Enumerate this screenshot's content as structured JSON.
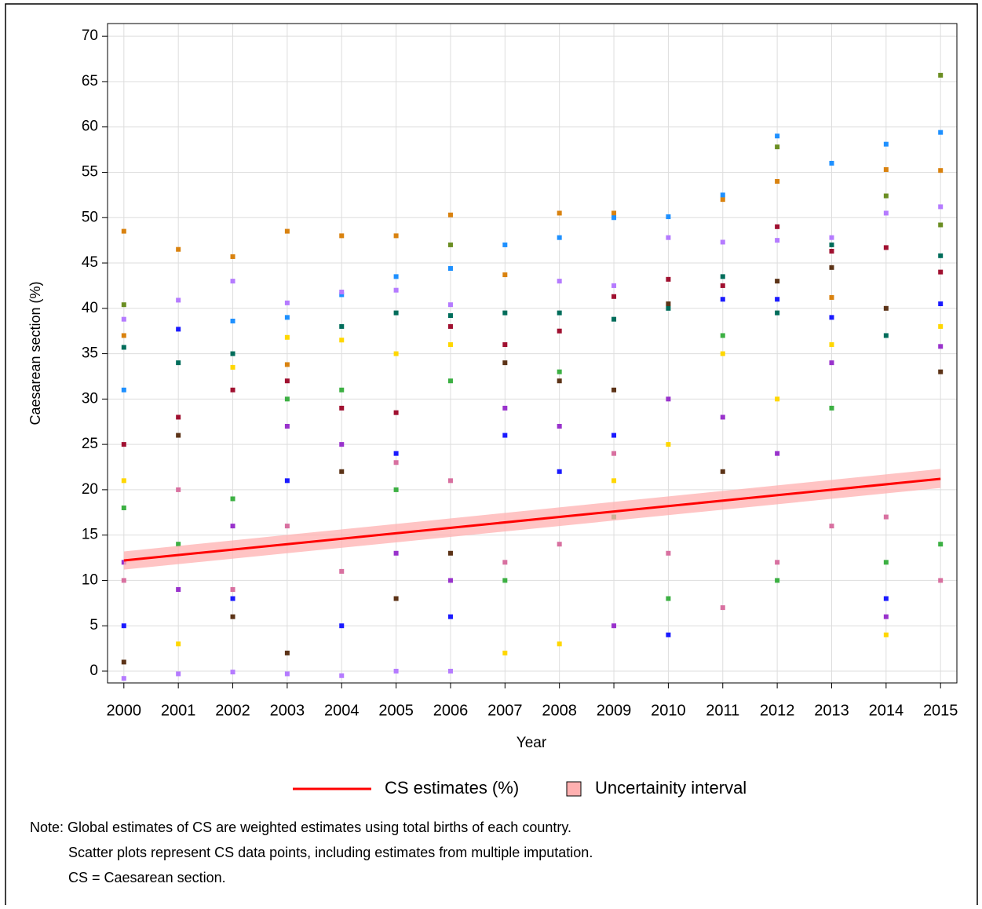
{
  "chart_data": {
    "type": "scatter",
    "x_label": "Year",
    "y_label": "Caesarean section (%)",
    "xlim": [
      1999.7,
      2015.3
    ],
    "ylim": [
      -1.3,
      71.4
    ],
    "xticks": [
      2000,
      2001,
      2002,
      2003,
      2004,
      2005,
      2006,
      2007,
      2008,
      2009,
      2010,
      2011,
      2012,
      2013,
      2014,
      2015
    ],
    "yticks": [
      0,
      5,
      10,
      15,
      20,
      25,
      30,
      35,
      40,
      45,
      50,
      55,
      60,
      65,
      70
    ],
    "grid": true,
    "points": [
      {
        "color": "#d9820f",
        "x": [
          2000,
          2001,
          2002,
          2003,
          2004,
          2005,
          2006,
          2007,
          2008,
          2009,
          2011,
          2012,
          2013,
          2014,
          2015,
          2000,
          2003
        ],
        "values": [
          48.5,
          46.5,
          45.7,
          48.5,
          48,
          48,
          50.3,
          43.7,
          50.5,
          50.5,
          52,
          54,
          41.2,
          55.3,
          55.2,
          37,
          33.8
        ]
      },
      {
        "color": "#1e90ff",
        "x": [
          2000,
          2002,
          2003,
          2004,
          2005,
          2006,
          2007,
          2008,
          2009,
          2010,
          2011,
          2012,
          2013,
          2014,
          2015
        ],
        "values": [
          31,
          38.6,
          39,
          41.5,
          43.5,
          44.4,
          47,
          47.8,
          50,
          50.1,
          52.5,
          59,
          56,
          58.1,
          59.4
        ]
      },
      {
        "color": "#b57bff",
        "x": [
          2000,
          2001,
          2002,
          2003,
          2004,
          2005,
          2006,
          2008,
          2009,
          2010,
          2011,
          2012,
          2013,
          2014,
          2015,
          2000,
          2001,
          2002,
          2003,
          2004,
          2005,
          2006
        ],
        "values": [
          38.8,
          40.9,
          43,
          40.6,
          41.8,
          42,
          40.4,
          43,
          42.5,
          47.8,
          47.3,
          47.5,
          47.8,
          50.5,
          51.2,
          -0.8,
          -0.3,
          -0.1,
          -0.3,
          -0.5,
          0,
          0
        ]
      },
      {
        "color": "#6b8e23",
        "x": [
          2000,
          2006,
          2012,
          2014,
          2015,
          2015
        ],
        "values": [
          40.4,
          47,
          57.8,
          52.4,
          65.7,
          49.2
        ]
      },
      {
        "color": "#006d5b",
        "x": [
          2000,
          2001,
          2002,
          2004,
          2005,
          2006,
          2007,
          2008,
          2009,
          2010,
          2011,
          2012,
          2013,
          2014,
          2015
        ],
        "values": [
          35.7,
          34,
          35,
          38,
          39.5,
          39.2,
          39.5,
          39.5,
          38.8,
          40,
          43.5,
          39.5,
          47,
          37,
          45.8
        ]
      },
      {
        "color": "#a01030",
        "x": [
          2000,
          2001,
          2002,
          2003,
          2004,
          2005,
          2006,
          2007,
          2008,
          2009,
          2010,
          2011,
          2012,
          2013,
          2014,
          2015
        ],
        "values": [
          25,
          28,
          31,
          32,
          29,
          28.5,
          38,
          36,
          37.5,
          41.3,
          43.2,
          42.5,
          49,
          46.3,
          46.7,
          44
        ]
      },
      {
        "color": "#ffd700",
        "x": [
          2000,
          2001,
          2002,
          2003,
          2004,
          2005,
          2006,
          2007,
          2008,
          2009,
          2010,
          2011,
          2012,
          2013,
          2014,
          2015
        ],
        "values": [
          21,
          3,
          33.5,
          36.8,
          36.5,
          35,
          36,
          2,
          3,
          21,
          25,
          35,
          30,
          36,
          4,
          38
        ]
      },
      {
        "color": "#3cb043",
        "x": [
          2000,
          2001,
          2002,
          2003,
          2004,
          2005,
          2006,
          2007,
          2008,
          2009,
          2010,
          2011,
          2012,
          2013,
          2014,
          2015
        ],
        "values": [
          18,
          14,
          19,
          30,
          31,
          20,
          32,
          10,
          33,
          17,
          8,
          37,
          10,
          29,
          12,
          14
        ]
      },
      {
        "color": "#1a1aff",
        "x": [
          2000,
          2001,
          2002,
          2003,
          2004,
          2005,
          2006,
          2007,
          2008,
          2009,
          2010,
          2011,
          2012,
          2013,
          2014,
          2015
        ],
        "values": [
          5,
          37.7,
          8,
          21,
          5,
          24,
          6,
          26,
          22,
          26,
          4,
          41,
          41,
          39,
          8,
          40.5
        ]
      },
      {
        "color": "#9932cc",
        "x": [
          2000,
          2001,
          2002,
          2003,
          2004,
          2005,
          2006,
          2007,
          2008,
          2009,
          2010,
          2011,
          2012,
          2013,
          2014,
          2015
        ],
        "values": [
          12,
          9,
          16,
          27,
          25,
          13,
          10,
          29,
          27,
          5,
          30,
          28,
          24,
          34,
          6,
          35.8
        ]
      },
      {
        "color": "#5c3317",
        "x": [
          2000,
          2001,
          2002,
          2003,
          2004,
          2005,
          2006,
          2007,
          2008,
          2009,
          2010,
          2011,
          2012,
          2013,
          2014,
          2015
        ],
        "values": [
          1,
          26,
          6,
          2,
          22,
          8,
          13,
          34,
          32,
          31,
          40.5,
          22,
          43,
          44.5,
          40,
          33
        ]
      },
      {
        "color": "#d870a0",
        "x": [
          2000,
          2001,
          2002,
          2003,
          2004,
          2005,
          2006,
          2007,
          2008,
          2009,
          2010,
          2011,
          2012,
          2013,
          2014,
          2015
        ],
        "values": [
          10,
          20,
          9,
          16,
          11,
          23,
          21,
          12,
          14,
          24,
          13,
          7,
          12,
          16,
          17,
          10
        ]
      }
    ],
    "series": [
      {
        "name": "CS estimates (%)",
        "color": "#ff0000",
        "x": [
          2000,
          2015
        ],
        "values": [
          12.2,
          21.2
        ]
      }
    ],
    "band": {
      "name": "Uncertainity interval",
      "color": "#ffb0b0",
      "x": [
        2000,
        2015
      ],
      "lower": [
        11.2,
        20.2
      ],
      "upper": [
        13.2,
        22.3
      ]
    },
    "notes": [
      "Note: Global estimates of CS are weighted estimates using total births of each country.",
      "Scatter plots represent CS data points, including estimates from multiple imputation.",
      "CS = Caesarean section."
    ]
  }
}
